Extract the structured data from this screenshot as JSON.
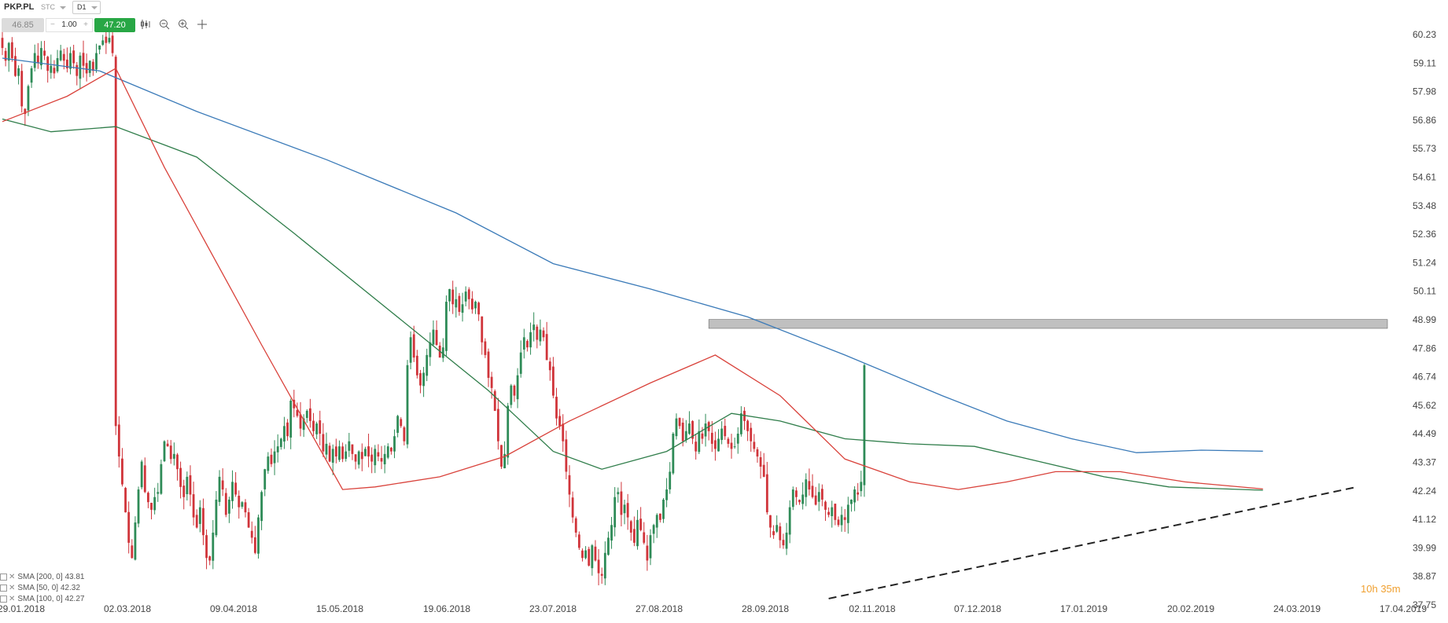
{
  "header": {
    "symbol": "PKP.PL",
    "instrument_type": "STC",
    "timeframe": "D1",
    "bid": "46.85",
    "volume": "1.00",
    "ask": "47.20"
  },
  "toolbar_icons": [
    "candles-icon",
    "zoom-out-icon",
    "zoom-in-icon",
    "crosshair-icon"
  ],
  "colors": {
    "up": "#2e8b57",
    "down": "#d0343a",
    "sma200": "#3a7ab8",
    "sma50": "#d9423b",
    "sma100": "#2f7d4a",
    "resistance_zone": "#9e9e9e",
    "countdown": "#f0a030",
    "ask_button": "#28a745"
  },
  "countdown": {
    "hours": "10h",
    "minutes": "35m"
  },
  "chart_data": {
    "type": "candlestick",
    "y_axis_ticks": [
      "60.23",
      "59.11",
      "57.98",
      "56.86",
      "55.73",
      "54.61",
      "53.48",
      "52.36",
      "51.24",
      "50.11",
      "48.99",
      "47.86",
      "46.74",
      "45.62",
      "44.49",
      "43.37",
      "42.24",
      "41.12",
      "39.99",
      "38.87",
      "37.75"
    ],
    "ylim": [
      37.75,
      60.23
    ],
    "x_axis_ticks": [
      "29.01.2018",
      "02.03.2018",
      "09.04.2018",
      "15.05.2018",
      "19.06.2018",
      "23.07.2018",
      "27.08.2018",
      "28.09.2018",
      "02.11.2018",
      "07.12.2018",
      "17.01.2019",
      "20.02.2019",
      "24.03.2019",
      "17.04.2019"
    ],
    "legend": [
      {
        "label": "SMA [200, 0]",
        "value": "43.81",
        "color_key": "sma200"
      },
      {
        "label": "SMA [50, 0]",
        "value": "42.32",
        "color_key": "sma50"
      },
      {
        "label": "SMA [100, 0]",
        "value": "42.27",
        "color_key": "sma100"
      }
    ],
    "closes": [
      59.7,
      59.2,
      59.9,
      59.3,
      58.6,
      58.9,
      57.4,
      57.1,
      58.2,
      58.9,
      59.5,
      59.1,
      59.7,
      59.4,
      58.8,
      59.0,
      58.7,
      59.3,
      59.6,
      59.2,
      58.9,
      59.5,
      59.1,
      58.6,
      59.4,
      59.0,
      58.7,
      59.2,
      58.8,
      59.5,
      59.8,
      60.0,
      59.9,
      60.1,
      59.5,
      44.8,
      43.6,
      42.5,
      41.4,
      40.2,
      39.6,
      41.0,
      42.3,
      43.4,
      42.2,
      41.8,
      41.5,
      42.0,
      42.2,
      43.3,
      44.2,
      44.0,
      43.5,
      43.7,
      43.1,
      42.4,
      42.0,
      42.8,
      42.1,
      41.2,
      40.8,
      41.6,
      40.5,
      39.6,
      39.5,
      40.6,
      41.9,
      42.8,
      42.3,
      41.3,
      41.9,
      42.6,
      42.1,
      41.6,
      41.8,
      41.4,
      40.8,
      40.4,
      39.8,
      41.2,
      42.2,
      43.1,
      43.6,
      43.3,
      43.8,
      44.0,
      44.3,
      44.8,
      44.4,
      45.8,
      45.5,
      45.2,
      44.7,
      45.1,
      45.4,
      45.0,
      44.6,
      44.9,
      44.5,
      43.8,
      44.1,
      43.4,
      43.9,
      43.6,
      44.0,
      43.5,
      43.8,
      44.2,
      43.7,
      43.4,
      43.8,
      43.5,
      43.9,
      43.6,
      43.4,
      43.9,
      43.6,
      43.4,
      43.7,
      44.0,
      43.8,
      44.4,
      45.2,
      44.8,
      44.2,
      47.2,
      48.3,
      47.5,
      46.8,
      46.4,
      46.9,
      47.6,
      48.1,
      48.6,
      48.0,
      47.5,
      47.9,
      49.7,
      50.2,
      49.6,
      49.8,
      49.3,
      49.6,
      50.1,
      49.8,
      49.4,
      49.7,
      49.2,
      48.1,
      47.6,
      46.7,
      46.3,
      45.4,
      44.2,
      43.2,
      43.7,
      45.6,
      46.4,
      46.0,
      46.8,
      47.7,
      48.3,
      47.9,
      48.5,
      48.8,
      48.2,
      48.6,
      48.3,
      47.4,
      47.0,
      46.0,
      45.1,
      44.8,
      44.2,
      43.0,
      42.1,
      41.2,
      40.6,
      40.0,
      39.6,
      39.9,
      39.3,
      40.1,
      39.5,
      39.0,
      38.9,
      39.8,
      40.4,
      40.9,
      42.0,
      42.2,
      41.3,
      41.7,
      41.2,
      40.6,
      40.2,
      41.1,
      40.7,
      40.2,
      39.5,
      40.5,
      40.9,
      41.3,
      41.1,
      41.9,
      42.3,
      43.0,
      44.5,
      45.1,
      44.8,
      44.2,
      44.6,
      44.9,
      44.3,
      43.8,
      44.6,
      44.3,
      44.9,
      44.6,
      44.1,
      43.9,
      44.3,
      44.7,
      44.4,
      44.1,
      43.9,
      44.0,
      44.5,
      45.3,
      45.0,
      44.6,
      44.2,
      43.9,
      43.6,
      43.2,
      42.8,
      41.4,
      40.8,
      40.5,
      40.9,
      40.3,
      40.1,
      40.6,
      41.6,
      42.3,
      42.0,
      41.8,
      42.1,
      42.7,
      42.3,
      42.0,
      41.7,
      42.2,
      41.9,
      41.5,
      41.3,
      41.6,
      41.1,
      40.9,
      41.3,
      41.1,
      41.7,
      41.9,
      42.3,
      42.1,
      42.6,
      47.2
    ],
    "sma200": [
      [
        0,
        59.3
      ],
      [
        30,
        58.8
      ],
      [
        60,
        57.2
      ],
      [
        100,
        55.3
      ],
      [
        140,
        53.2
      ],
      [
        170,
        51.2
      ],
      [
        200,
        50.2
      ],
      [
        230,
        49.1
      ],
      [
        260,
        47.6
      ],
      [
        290,
        46.0
      ],
      [
        310,
        45.0
      ],
      [
        330,
        44.3
      ],
      [
        350,
        43.75
      ],
      [
        370,
        43.85
      ],
      [
        389,
        43.81
      ]
    ],
    "sma50": [
      [
        0,
        56.8
      ],
      [
        20,
        57.8
      ],
      [
        35,
        58.9
      ],
      [
        50,
        55.0
      ],
      [
        80,
        48.0
      ],
      [
        105,
        42.3
      ],
      [
        115,
        42.4
      ],
      [
        135,
        42.8
      ],
      [
        155,
        43.6
      ],
      [
        175,
        45.0
      ],
      [
        200,
        46.5
      ],
      [
        220,
        47.6
      ],
      [
        240,
        46.0
      ],
      [
        260,
        43.5
      ],
      [
        280,
        42.6
      ],
      [
        295,
        42.3
      ],
      [
        310,
        42.6
      ],
      [
        325,
        43.0
      ],
      [
        345,
        43.0
      ],
      [
        365,
        42.6
      ],
      [
        389,
        42.32
      ]
    ],
    "sma100": [
      [
        0,
        56.9
      ],
      [
        15,
        56.4
      ],
      [
        35,
        56.6
      ],
      [
        60,
        55.4
      ],
      [
        90,
        52.4
      ],
      [
        120,
        49.3
      ],
      [
        150,
        46.2
      ],
      [
        170,
        43.8
      ],
      [
        185,
        43.1
      ],
      [
        205,
        43.8
      ],
      [
        225,
        45.3
      ],
      [
        240,
        45.0
      ],
      [
        260,
        44.3
      ],
      [
        280,
        44.1
      ],
      [
        300,
        44.0
      ],
      [
        320,
        43.4
      ],
      [
        340,
        42.8
      ],
      [
        360,
        42.4
      ],
      [
        389,
        42.27
      ]
    ],
    "resistance_zone": {
      "x_start_index": 218,
      "y_low": 48.65,
      "y_high": 49.0
    },
    "trendline": {
      "start": [
        255,
        38.0
      ],
      "end": [
        418,
        42.4
      ],
      "style": "dashed"
    }
  }
}
